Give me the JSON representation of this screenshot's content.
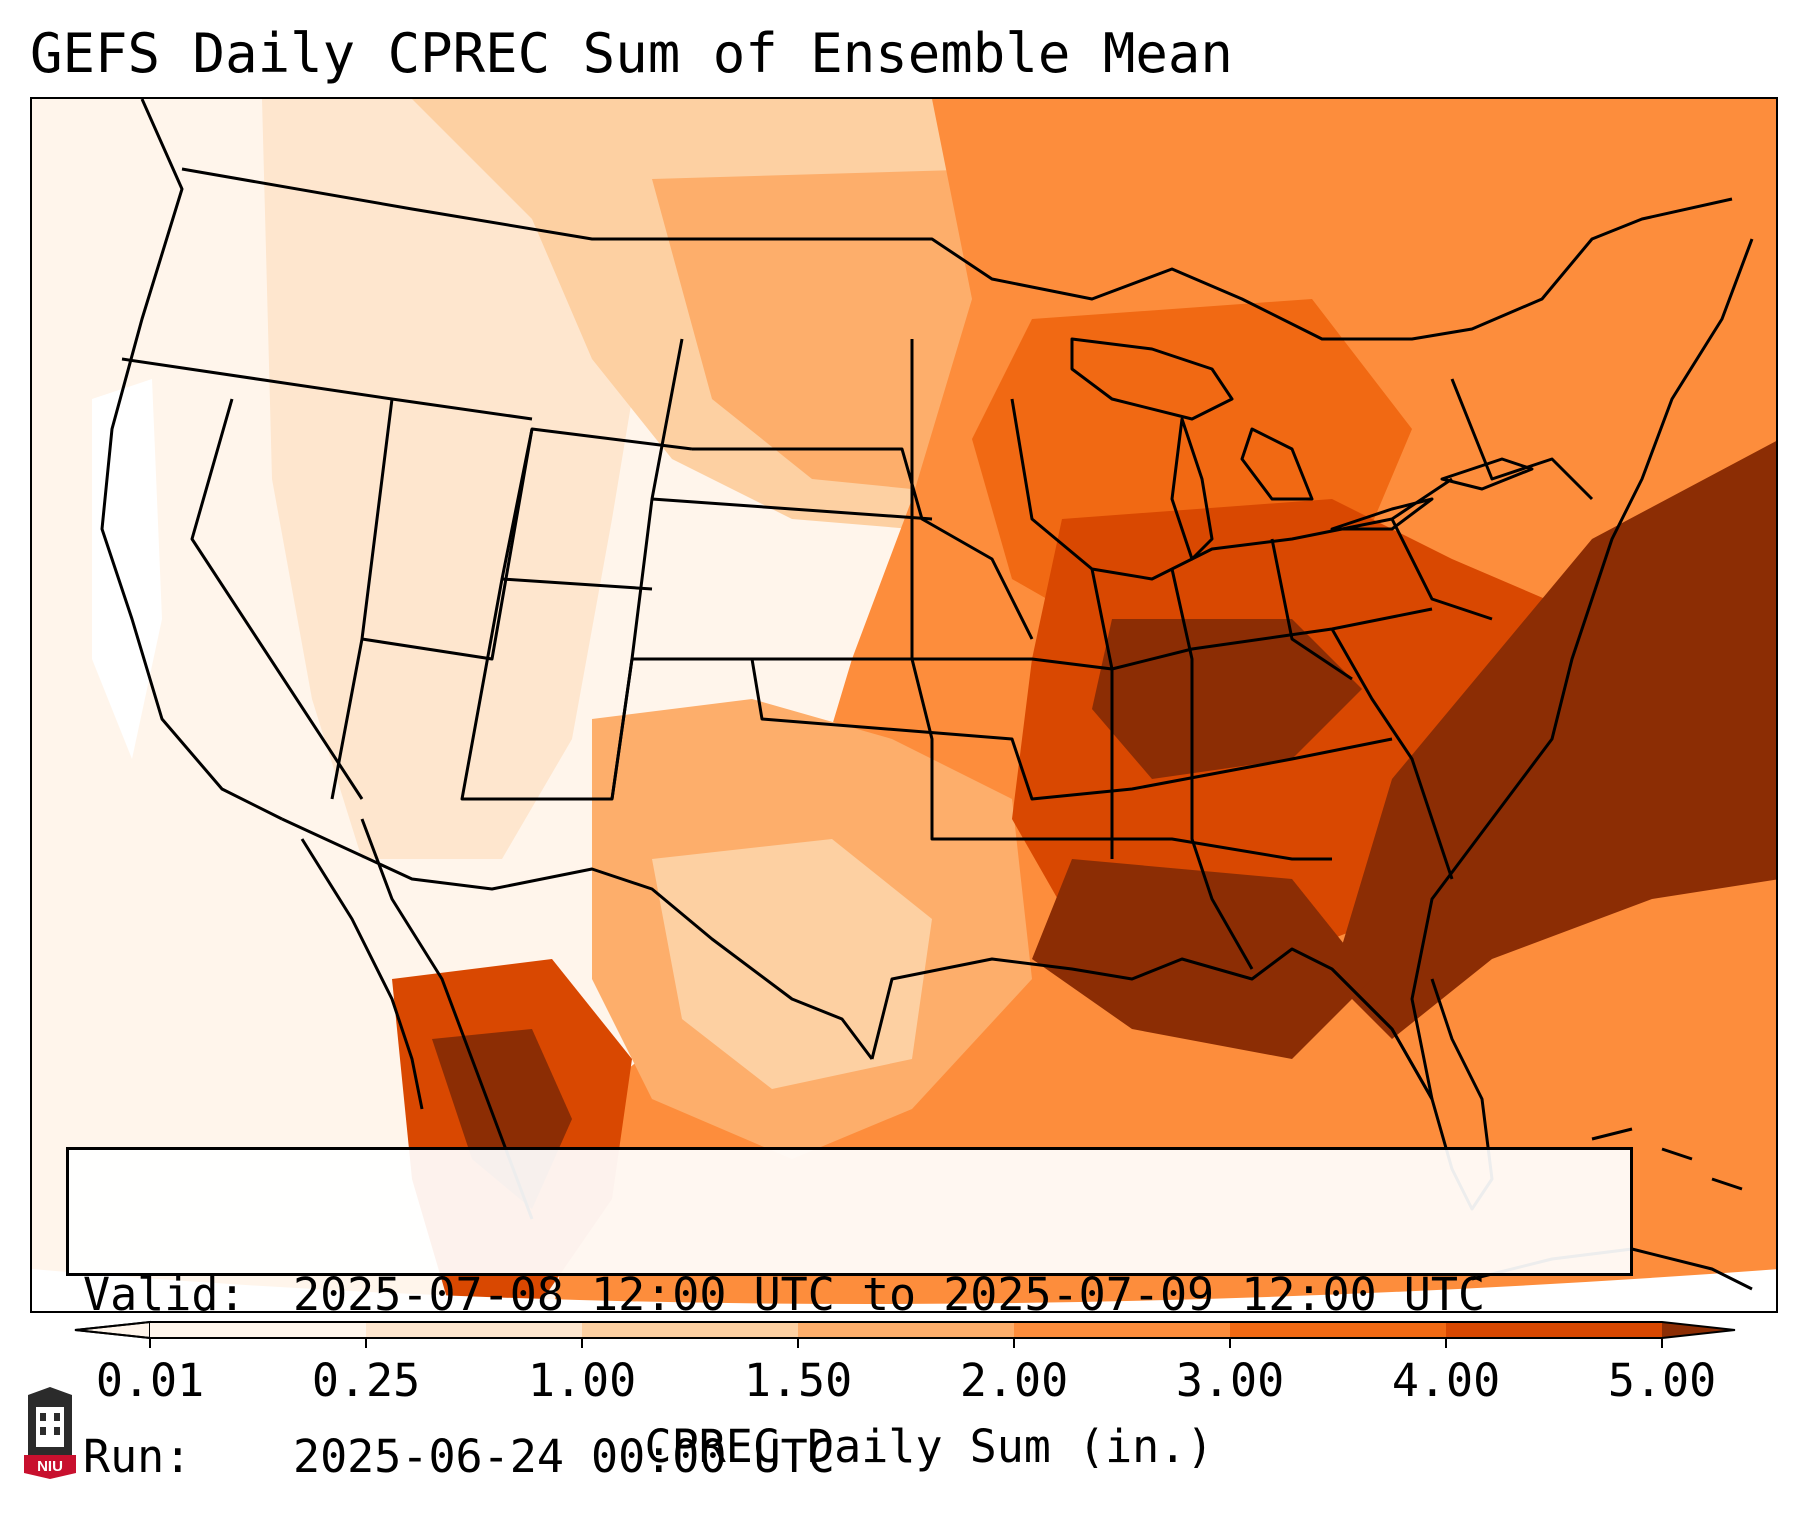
{
  "header": {
    "title": "GEFS Daily CPREC Sum of Ensemble Mean"
  },
  "info": {
    "valid_key": "Valid:",
    "valid_value": "2025-07-08 12:00 UTC to 2025-07-09 12:00 UTC",
    "run_key": "Run:",
    "run_value": "2025-06-24 00:00 UTC"
  },
  "colorbar": {
    "label": "CPREC Daily Sum (in.)",
    "ticks": [
      "0.01",
      "0.25",
      "1.00",
      "1.50",
      "2.00",
      "3.00",
      "4.00",
      "5.00"
    ],
    "colors": [
      "#fff5eb",
      "#fee6ce",
      "#fdd0a2",
      "#fdae6b",
      "#fd8d3c",
      "#f16913",
      "#d94801",
      "#8c2d04"
    ],
    "extend": "both"
  },
  "logo": {
    "text": "NIU"
  },
  "map": {
    "projection": "Lambert conformal conic, CONUS",
    "precip_regions": [
      {
        "region": "Southeast US / Atlantic",
        "range": "4.00–5.00+"
      },
      {
        "region": "Tennessee & Ohio Valley",
        "range": "3.00–5.00"
      },
      {
        "region": "Great Lakes / Northeast",
        "range": "2.00–4.00"
      },
      {
        "region": "Central & Southern Plains",
        "range": "1.00–3.00"
      },
      {
        "region": "Southwest / Mexico",
        "range": "1.00–5.00"
      },
      {
        "region": "West Coast",
        "range": "0.01–0.25"
      }
    ]
  }
}
